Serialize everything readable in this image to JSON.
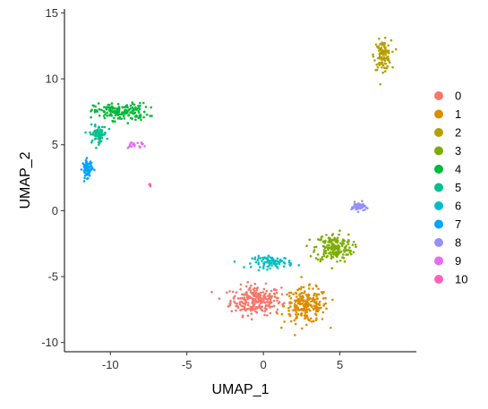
{
  "chart_data": {
    "type": "scatter",
    "title": "",
    "xlabel": "UMAP_1",
    "ylabel": "UMAP_2",
    "xlim": [
      -13.0,
      10.0
    ],
    "ylim": [
      -10.7,
      15.3
    ],
    "xticks": [
      -10,
      -5,
      0,
      5
    ],
    "yticks": [
      -10,
      -5,
      0,
      5,
      10,
      15
    ],
    "x_tick_labels": [
      "-10",
      "-5",
      "0",
      "5"
    ],
    "y_tick_labels": [
      "-10",
      "-5",
      "0",
      "5",
      "10",
      "15"
    ],
    "grid": false,
    "legend_position": "right",
    "point_shape": "dot",
    "series": [
      {
        "name": "0",
        "color": "#F8766D",
        "center": [
          -0.5,
          -6.8
        ],
        "spread": [
          1.5,
          1.0
        ]
      },
      {
        "name": "1",
        "color": "#DE8C00",
        "center": [
          2.8,
          -7.2
        ],
        "spread": [
          1.3,
          1.2
        ]
      },
      {
        "name": "2",
        "color": "#B79F00",
        "center": [
          7.8,
          11.8
        ],
        "spread": [
          0.5,
          1.0
        ]
      },
      {
        "name": "3",
        "color": "#7CAE00",
        "center": [
          4.6,
          -2.8
        ],
        "spread": [
          1.1,
          1.0
        ]
      },
      {
        "name": "4",
        "color": "#00BA38",
        "center": [
          -9.3,
          7.5
        ],
        "spread": [
          1.6,
          0.6
        ]
      },
      {
        "name": "5",
        "color": "#00C08B",
        "center": [
          -10.8,
          5.8
        ],
        "spread": [
          0.5,
          0.6
        ]
      },
      {
        "name": "6",
        "color": "#00BFC4",
        "center": [
          0.6,
          -3.9
        ],
        "spread": [
          1.2,
          0.4
        ]
      },
      {
        "name": "7",
        "color": "#00A5FF",
        "center": [
          -11.5,
          3.2
        ],
        "spread": [
          0.3,
          0.6
        ]
      },
      {
        "name": "8",
        "color": "#9590FF",
        "center": [
          6.2,
          0.3
        ],
        "spread": [
          0.4,
          0.3
        ]
      },
      {
        "name": "9",
        "color": "#E76BF3",
        "center": [
          -8.4,
          5.0
        ],
        "spread": [
          0.7,
          0.3
        ]
      },
      {
        "name": "10",
        "color": "#FF62BC",
        "center": [
          -7.4,
          2.0
        ],
        "spread": [
          0.1,
          0.1
        ]
      }
    ]
  }
}
